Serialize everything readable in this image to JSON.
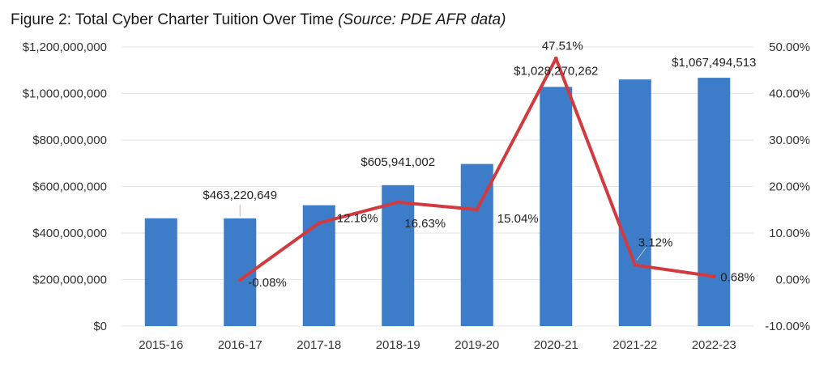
{
  "title": "Figure 2: Total Cyber Charter Tuition Over Time",
  "title_source": "(Source: PDE AFR data)",
  "colors": {
    "bars": "#3d7cc9",
    "line": "#d13b40"
  },
  "chart_data": {
    "type": "bar",
    "title": "Figure 2: Total Cyber Charter Tuition Over Time (Source: PDE AFR data)",
    "categories": [
      "2015-16",
      "2016-17",
      "2017-18",
      "2018-19",
      "2019-20",
      "2020-21",
      "2021-22",
      "2022-23"
    ],
    "series": [
      {
        "type": "bar",
        "axis": "left",
        "values": [
          463600000,
          463220649,
          519600000,
          605941002,
          697000000,
          1028270262,
          1060300000,
          1067494513
        ]
      },
      {
        "type": "line",
        "axis": "right",
        "values": [
          null,
          -0.08,
          12.16,
          16.63,
          15.04,
          47.51,
          3.12,
          0.68
        ]
      }
    ],
    "y_left": {
      "range": [
        0,
        1200000000
      ],
      "tick_labels": [
        "$0",
        "$200,000,000",
        "$400,000,000",
        "$600,000,000",
        "$800,000,000",
        "$1,000,000,000",
        "$1,200,000,000"
      ]
    },
    "y_right": {
      "range": [
        -10,
        50
      ],
      "tick_labels": [
        "-10.00%",
        "0.00%",
        "10.00%",
        "20.00%",
        "30.00%",
        "40.00%",
        "50.00%"
      ]
    },
    "bar_labels": [
      {
        "index": 1,
        "text": "$463,220,649"
      },
      {
        "index": 3,
        "text": "$605,941,002"
      },
      {
        "index": 5,
        "text": "$1,028,270,262"
      },
      {
        "index": 7,
        "text": "$1,067,494,513"
      }
    ],
    "line_labels": [
      "-0.08%",
      "12.16%",
      "16.63%",
      "15.04%",
      "47.51%",
      "3.12%",
      "0.68%"
    ],
    "grid": true,
    "legend": "none"
  }
}
